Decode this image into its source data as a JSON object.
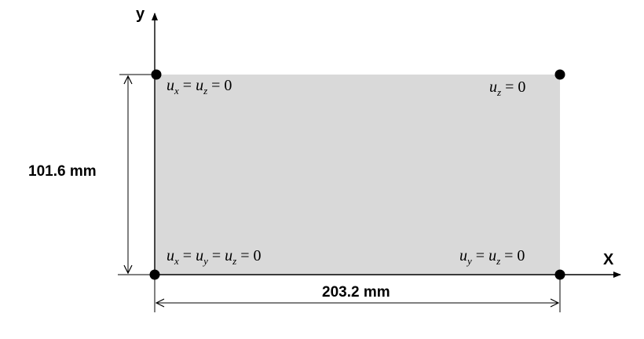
{
  "axes": {
    "x_label": "X",
    "y_label": "y"
  },
  "dimensions": {
    "width_label": "203.2 mm",
    "height_label": "101.6 mm"
  },
  "boundary_conditions": {
    "top_left": {
      "parts": [
        "u",
        "x",
        " = ",
        "u",
        "z",
        " = 0"
      ]
    },
    "top_right": {
      "parts": [
        "u",
        "z",
        " = 0"
      ]
    },
    "bottom_left": {
      "parts": [
        "u",
        "x",
        " = ",
        "u",
        "y",
        " = ",
        "u",
        "z",
        " = 0"
      ]
    },
    "bottom_right": {
      "parts": [
        "u",
        "y",
        " = ",
        "u",
        "z",
        " = 0"
      ]
    }
  },
  "colors": {
    "plate_fill": "#d9d9d9",
    "line": "#000000"
  }
}
